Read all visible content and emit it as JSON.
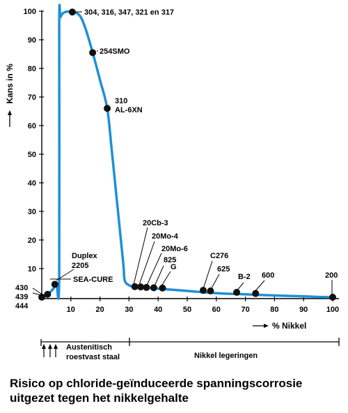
{
  "chart_data": {
    "type": "line",
    "title": "Risico op chloride-geïnduceerde spanningscorrosie uitgezet tegen het nikkelgehalte",
    "title_lines": [
      "Risico op chloride-geïnduceerde spanningscorrosie",
      "uitgezet tegen het nikkelgehalte"
    ],
    "xlabel": "% Nikkel",
    "ylabel": "Kans in %",
    "xlim": [
      0,
      100
    ],
    "ylim": [
      0,
      100
    ],
    "xticks": [
      "10",
      "20",
      "30",
      "40",
      "50",
      "60",
      "70",
      "80",
      "90",
      "100"
    ],
    "yticks": [
      "10",
      "20",
      "30",
      "40",
      "50",
      "60",
      "70",
      "80",
      "90",
      "100"
    ],
    "grid": false,
    "line_color": "#1f8fd8",
    "curve": [
      {
        "x": 0,
        "y": 0
      },
      {
        "x": 2,
        "y": 1
      },
      {
        "x": 4,
        "y": 3
      },
      {
        "x": 5,
        "y": 5
      },
      {
        "x": 6,
        "y": 7
      },
      {
        "x": 6,
        "y": 94
      },
      {
        "x": 6.5,
        "y": 98
      },
      {
        "x": 8,
        "y": 99.7
      },
      {
        "x": 10.5,
        "y": 99.7
      },
      {
        "x": 13,
        "y": 98.5
      },
      {
        "x": 15,
        "y": 94
      },
      {
        "x": 17.5,
        "y": 85.5
      },
      {
        "x": 20,
        "y": 76
      },
      {
        "x": 22.5,
        "y": 66
      },
      {
        "x": 24,
        "y": 52
      },
      {
        "x": 26,
        "y": 32
      },
      {
        "x": 28,
        "y": 12
      },
      {
        "x": 28.5,
        "y": 6
      },
      {
        "x": 30,
        "y": 4.2
      },
      {
        "x": 32,
        "y": 3.7
      },
      {
        "x": 40,
        "y": 3.0
      },
      {
        "x": 50,
        "y": 2.2
      },
      {
        "x": 60,
        "y": 1.4
      },
      {
        "x": 70,
        "y": 1.0
      },
      {
        "x": 80,
        "y": 0.6
      },
      {
        "x": 90,
        "y": 0.3
      },
      {
        "x": 95,
        "y": 0.1
      }
    ],
    "points": [
      {
        "x": 0,
        "y": 0,
        "label": ""
      },
      {
        "x": 2,
        "y": 1,
        "label": ""
      },
      {
        "x": 4.5,
        "y": 4.5,
        "label": ""
      },
      {
        "x": 10.5,
        "y": 99.7,
        "label": "304, 316, 347, 321 en 317"
      },
      {
        "x": 17.5,
        "y": 85.5,
        "label": "254SMO"
      },
      {
        "x": 22.5,
        "y": 66,
        "label": "310 AL-6XN"
      },
      {
        "x": 32,
        "y": 3.7,
        "label": ""
      },
      {
        "x": 34,
        "y": 3.6,
        "label": ""
      },
      {
        "x": 36,
        "y": 3.4,
        "label": ""
      },
      {
        "x": 38.5,
        "y": 3.3,
        "label": ""
      },
      {
        "x": 41.5,
        "y": 3.2,
        "label": ""
      },
      {
        "x": 55.5,
        "y": 2.4,
        "label": ""
      },
      {
        "x": 58,
        "y": 2.2,
        "label": ""
      },
      {
        "x": 67,
        "y": 1.7,
        "label": ""
      },
      {
        "x": 73.5,
        "y": 1.3,
        "label": ""
      },
      {
        "x": 100,
        "y": 0,
        "label": ""
      }
    ],
    "annotations": {
      "top": "304, 316, 347, 321 en 317",
      "smo": "254SMO",
      "n310": "310",
      "al6xn": "AL-6XN",
      "duplex": "Duplex",
      "d2205": "2205",
      "seacure": "SEA-CURE",
      "a430": "430",
      "a439": "439",
      "a444": "444",
      "cb3": "20Cb-3",
      "mo4": "20Mo-4",
      "mo6": "20Mo-6",
      "a825": "825",
      "g": "G",
      "c276": "C276",
      "a625": "625",
      "b2": "B-2",
      "a600": "600",
      "a200": "200"
    },
    "ranges": {
      "austenitic_line1": "Austenitisch",
      "austenitic_line2": "roestvast staal",
      "nickel": "Nikkel legeringen"
    }
  }
}
